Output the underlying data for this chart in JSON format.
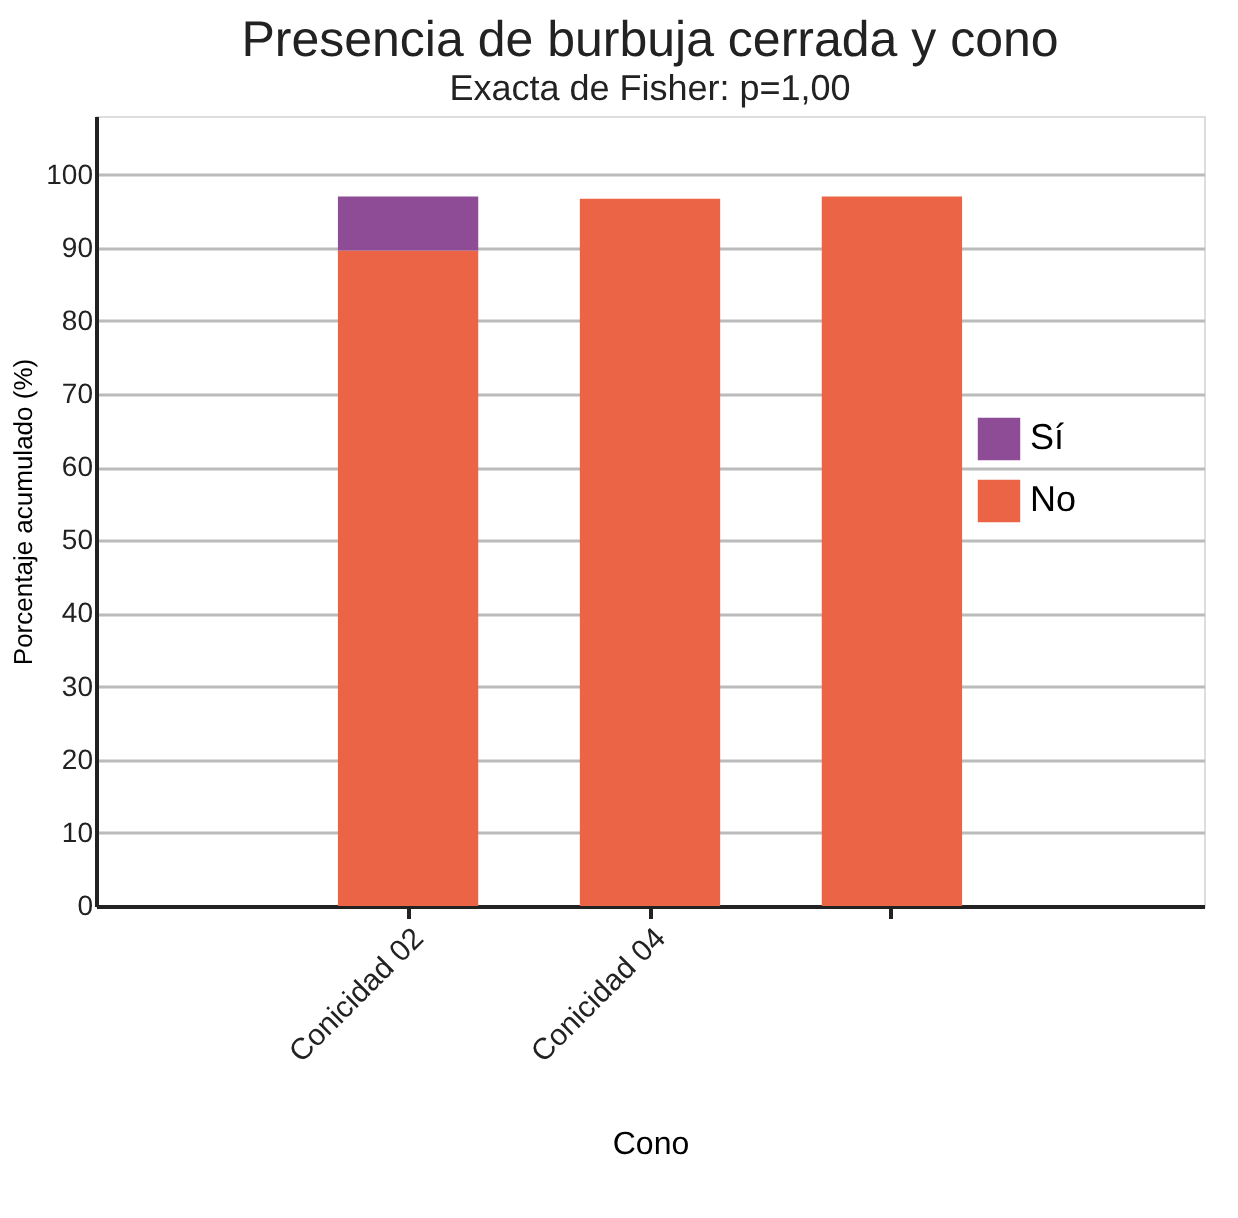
{
  "chart_data": {
    "type": "bar",
    "title": "Presencia de burbuja cerrada y cono",
    "subtitle": "Exacta de Fisher: p=1,00",
    "xlabel": "Cono",
    "ylabel": "Porcentaje acumulado (%)",
    "categories": [
      "Conicidad 02",
      "Conicidad 04",
      null
    ],
    "series": [
      {
        "name": "No",
        "color": "#ec6446",
        "values": [
          89.6,
          96.7,
          97.0
        ]
      },
      {
        "name": "Sí",
        "color": "#8e4b96",
        "values": [
          7.4,
          0,
          0
        ]
      }
    ],
    "stacked": true,
    "ylim": [
      0,
      108
    ],
    "yticks": [
      0,
      10,
      20,
      30,
      40,
      50,
      60,
      70,
      80,
      90,
      100
    ],
    "grid": "y",
    "legend": "right"
  }
}
